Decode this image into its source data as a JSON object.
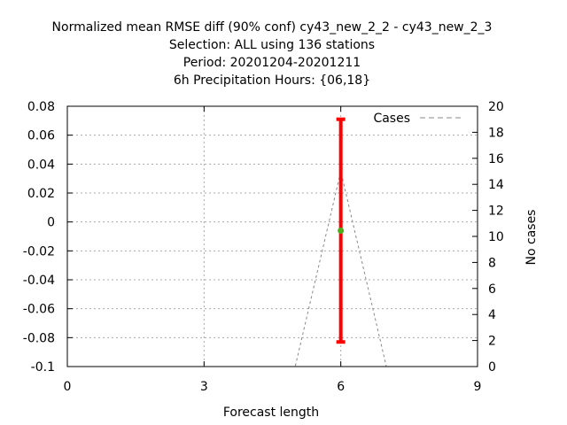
{
  "chart_data": {
    "type": "line",
    "title_lines": [
      "Normalized mean RMSE diff (90% conf) cy43_new_2_2 - cy43_new_2_3",
      "Selection: ALL using   136 stations",
      "Period: 20201204-20201211",
      "6h Precipitation   Hours: {06,18}"
    ],
    "xlabel": "Forecast length",
    "ylabel_right": "No cases",
    "xlim": [
      0,
      9
    ],
    "ylim": [
      -0.1,
      0.08
    ],
    "y2lim": [
      0,
      20
    ],
    "x_ticks": [
      0,
      3,
      6,
      9
    ],
    "y_ticks": [
      -0.1,
      -0.08,
      -0.06,
      -0.04,
      -0.02,
      0,
      0.02,
      0.04,
      0.06,
      0.08
    ],
    "y2_ticks": [
      0,
      2,
      4,
      6,
      8,
      10,
      12,
      14,
      16,
      18,
      20
    ],
    "x_tick_labels": [
      "0",
      "3",
      "6",
      "9"
    ],
    "y_tick_labels": [
      "-0.1",
      "-0.08",
      "-0.06",
      "-0.04",
      "-0.02",
      "0",
      "0.02",
      "0.04",
      "0.06",
      "0.08"
    ],
    "y2_tick_labels": [
      "0",
      "2",
      "4",
      "6",
      "8",
      "10",
      "12",
      "14",
      "16",
      "18",
      "20"
    ],
    "grid": true,
    "legend_position": "top-right",
    "error_bar": {
      "x": 6,
      "mean": -0.006,
      "low": -0.083,
      "high": 0.071,
      "color": "#ff0000",
      "marker_color": "#4caf1a"
    },
    "cases_series": {
      "name": "Cases",
      "color": "#888888",
      "x": [
        0,
        0.5,
        1,
        1.5,
        2,
        2.5,
        3,
        3.5,
        4,
        4.5,
        5,
        6,
        7,
        7.5,
        8,
        8.5,
        9
      ],
      "y": [
        0,
        0,
        0,
        0,
        0,
        0,
        0,
        0,
        0,
        0,
        0,
        15,
        0,
        0,
        0,
        0,
        0
      ]
    }
  }
}
